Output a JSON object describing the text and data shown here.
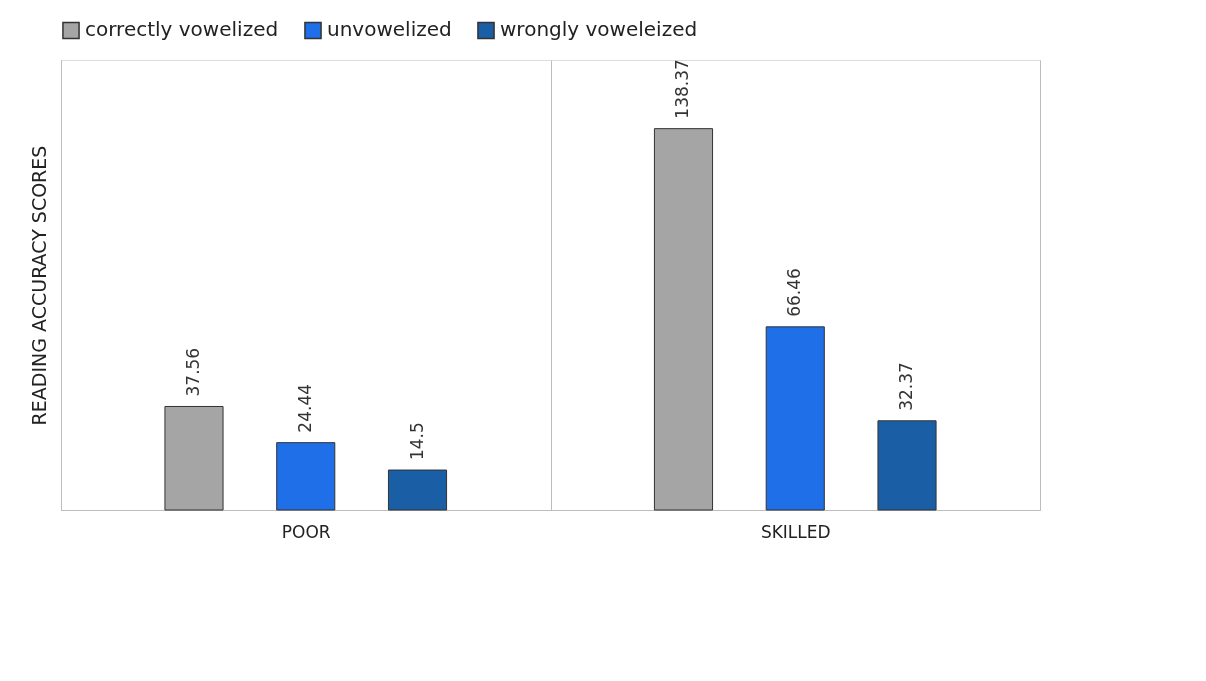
{
  "chart_data": {
    "type": "bar",
    "ylabel": "READING ACCURACY SCORES",
    "categories": [
      "POOR",
      "SKILLED"
    ],
    "series": [
      {
        "name": "correctly vowelized",
        "color": "#a5a5a5",
        "values": [
          37.56,
          138.37
        ]
      },
      {
        "name": "unvowelized",
        "color": "#1f6fe8",
        "values": [
          24.44,
          66.46
        ]
      },
      {
        "name": "wrongly voweleized",
        "color": "#1a5fa6",
        "values": [
          14.5,
          32.37
        ]
      }
    ],
    "data_labels": true,
    "legend": "top",
    "grid": "x"
  }
}
